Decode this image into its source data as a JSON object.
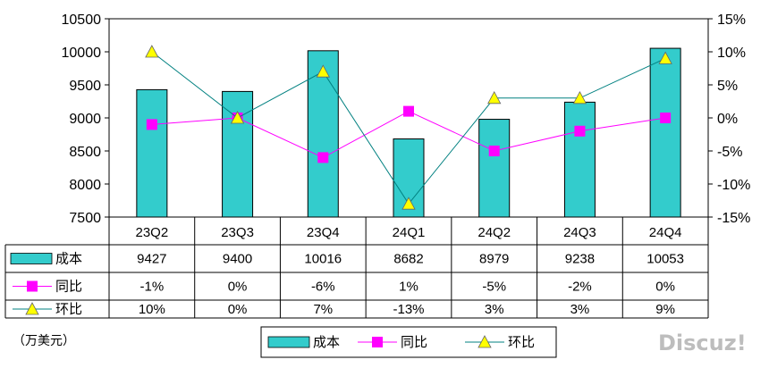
{
  "chart_data": {
    "type": "bar",
    "categories": [
      "23Q2",
      "23Q3",
      "23Q4",
      "24Q1",
      "24Q2",
      "24Q3",
      "24Q4"
    ],
    "series": [
      {
        "name": "成本",
        "type": "bar",
        "axis": "left",
        "values": [
          9427,
          9400,
          10016,
          8682,
          8979,
          9238,
          10053
        ],
        "color": "#33CCCC"
      },
      {
        "name": "同比",
        "type": "line",
        "axis": "right",
        "values": [
          -1,
          0,
          -6,
          1,
          -5,
          -2,
          0
        ],
        "color": "#FF00FF",
        "marker": "square"
      },
      {
        "name": "环比",
        "type": "line",
        "axis": "right",
        "values": [
          10,
          0,
          7,
          -13,
          3,
          3,
          9
        ],
        "color": "#008080",
        "marker": "triangle",
        "marker_color": "#FFFF00"
      }
    ],
    "y_left": {
      "ylim": [
        7500,
        10500
      ],
      "ticks": [
        "7500",
        "8000",
        "8500",
        "9000",
        "9500",
        "10000",
        "10500"
      ]
    },
    "y_right": {
      "ylim": [
        -15,
        15
      ],
      "ticks": [
        "-15%",
        "-10%",
        "-5%",
        "0%",
        "5%",
        "10%",
        "15%"
      ]
    },
    "table": {
      "rows": [
        {
          "label": "成本",
          "cells": [
            "9427",
            "9400",
            "10016",
            "8682",
            "8979",
            "9238",
            "10053"
          ]
        },
        {
          "label": "同比",
          "cells": [
            "-1%",
            "0%",
            "-6%",
            "1%",
            "-5%",
            "-2%",
            "0%"
          ]
        },
        {
          "label": "环比",
          "cells": [
            "10%",
            "0%",
            "7%",
            "-13%",
            "3%",
            "3%",
            "9%"
          ]
        }
      ]
    },
    "unit": "（万美元）",
    "legend": [
      "成本",
      "同比",
      "环比"
    ],
    "grid": false
  },
  "watermark": "Discuz!"
}
